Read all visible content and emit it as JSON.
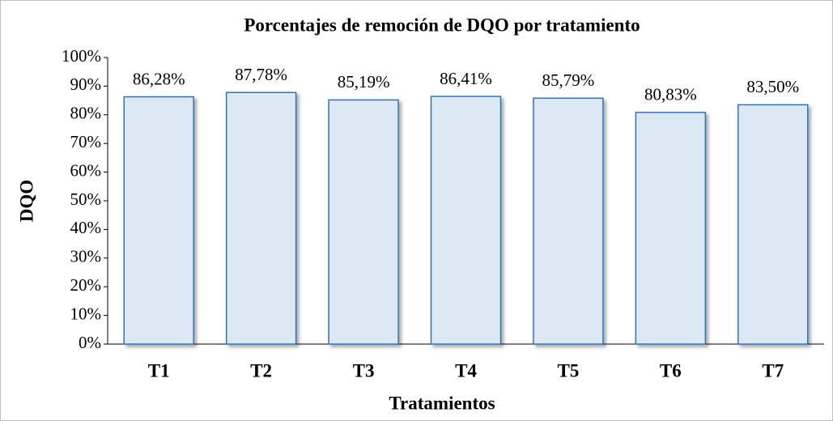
{
  "chart_data": {
    "type": "bar",
    "title": "Porcentajes de remoción de DQO por tratamiento",
    "x_label": "Tratamientos",
    "y_label": "DQO",
    "categories": [
      "T1",
      "T2",
      "T3",
      "T4",
      "T5",
      "T6",
      "T7"
    ],
    "values": [
      86.28,
      87.78,
      85.19,
      86.41,
      85.79,
      80.83,
      83.5
    ],
    "value_labels": [
      "86,28%",
      "87,78%",
      "85,19%",
      "86,41%",
      "85,79%",
      "80,83%",
      "83,50%"
    ],
    "color": "#dde8f5",
    "edge_color": "#2e75b6",
    "ylim": [
      0,
      100
    ],
    "yticks": [
      {
        "value": 0,
        "label": "0%"
      },
      {
        "value": 10,
        "label": "10%"
      },
      {
        "value": 20,
        "label": "20%"
      },
      {
        "value": 30,
        "label": "30%"
      },
      {
        "value": 40,
        "label": "40%"
      },
      {
        "value": 50,
        "label": "50%"
      },
      {
        "value": 60,
        "label": "60%"
      },
      {
        "value": 70,
        "label": "70%"
      },
      {
        "value": 80,
        "label": "80%"
      },
      {
        "value": 90,
        "label": "90%"
      },
      {
        "value": 100,
        "label": "100%"
      }
    ]
  }
}
